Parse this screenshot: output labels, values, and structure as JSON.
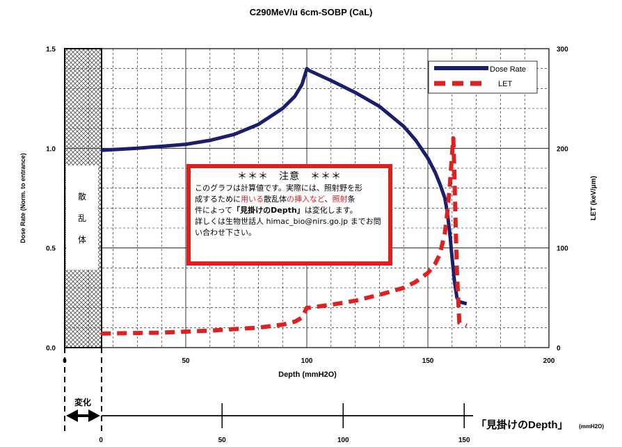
{
  "title": "C290MeV/u 6cm-SOBP (CaL)",
  "chart_data": {
    "type": "line",
    "xlabel": "Depth (mmH2O)",
    "ylabel_left": "Dose Rate (Norm. to entrance)",
    "ylabel_right": "LET (keV/μm)",
    "xlim": [
      0,
      200
    ],
    "ylim_left": [
      0,
      1.5
    ],
    "ylim_right": [
      0,
      300
    ],
    "x_ticks": [
      "0",
      "50",
      "100",
      "150",
      "200"
    ],
    "y_left_ticks": [
      "0.0",
      "0.5",
      "1.0",
      "1.5"
    ],
    "y_right_ticks": [
      "0",
      "100",
      "200",
      "300"
    ],
    "grid": true,
    "legend_position": "top-right",
    "scatterer_region": {
      "x_range": [
        0,
        15
      ],
      "label": [
        "散",
        "乱",
        "体"
      ]
    },
    "series": [
      {
        "name": "Dose Rate",
        "axis": "left",
        "color": "#1a1f6b",
        "x": [
          15,
          30,
          50,
          60,
          70,
          80,
          90,
          95,
          98,
          100,
          101,
          110,
          120,
          130,
          140,
          145,
          150,
          153,
          155,
          157,
          158,
          159,
          160,
          161,
          162,
          163,
          166
        ],
        "y": [
          0.99,
          1.0,
          1.02,
          1.04,
          1.07,
          1.12,
          1.2,
          1.26,
          1.32,
          1.4,
          1.39,
          1.34,
          1.28,
          1.21,
          1.11,
          1.04,
          0.95,
          0.88,
          0.82,
          0.75,
          0.68,
          0.58,
          0.45,
          0.33,
          0.25,
          0.23,
          0.22
        ]
      },
      {
        "name": "LET",
        "axis": "right",
        "color": "#e02020",
        "x": [
          15,
          40,
          60,
          80,
          90,
          95,
          98,
          99,
          100,
          101,
          110,
          120,
          130,
          140,
          145,
          150,
          153,
          155,
          157,
          158,
          159,
          160,
          160.5,
          161,
          161.5,
          162,
          163,
          166
        ],
        "y": [
          14,
          15,
          17,
          20,
          23,
          26,
          30,
          35,
          40,
          40,
          43,
          47,
          53,
          60,
          66,
          75,
          84,
          94,
          115,
          135,
          160,
          195,
          210,
          170,
          120,
          75,
          25,
          22
        ]
      }
    ],
    "secondary_axis": {
      "label": "「見掛けのDepth」",
      "unit": "(mmH2O)",
      "ticks": [
        "0",
        "50",
        "100",
        "150"
      ],
      "range_label": "変化"
    }
  },
  "notice": {
    "heading": "＊＊＊　注意　＊＊＊",
    "l1": "このグラフは計算値です。実際には、照射野を形",
    "l2a": "成するために",
    "l2b": "用いる",
    "l2c": "散乱体",
    "l2d": "の挿入など",
    "l2e": "、",
    "l2f": "照射",
    "l2g": "条",
    "l3a": "件によって",
    "l3b": "「見掛けのDepth」",
    "l3c": "は変化します。",
    "l4": "詳しくは生物世話人 himac_bio@nirs.go.jp までお問",
    "l5": "い合わせ下さい。"
  }
}
